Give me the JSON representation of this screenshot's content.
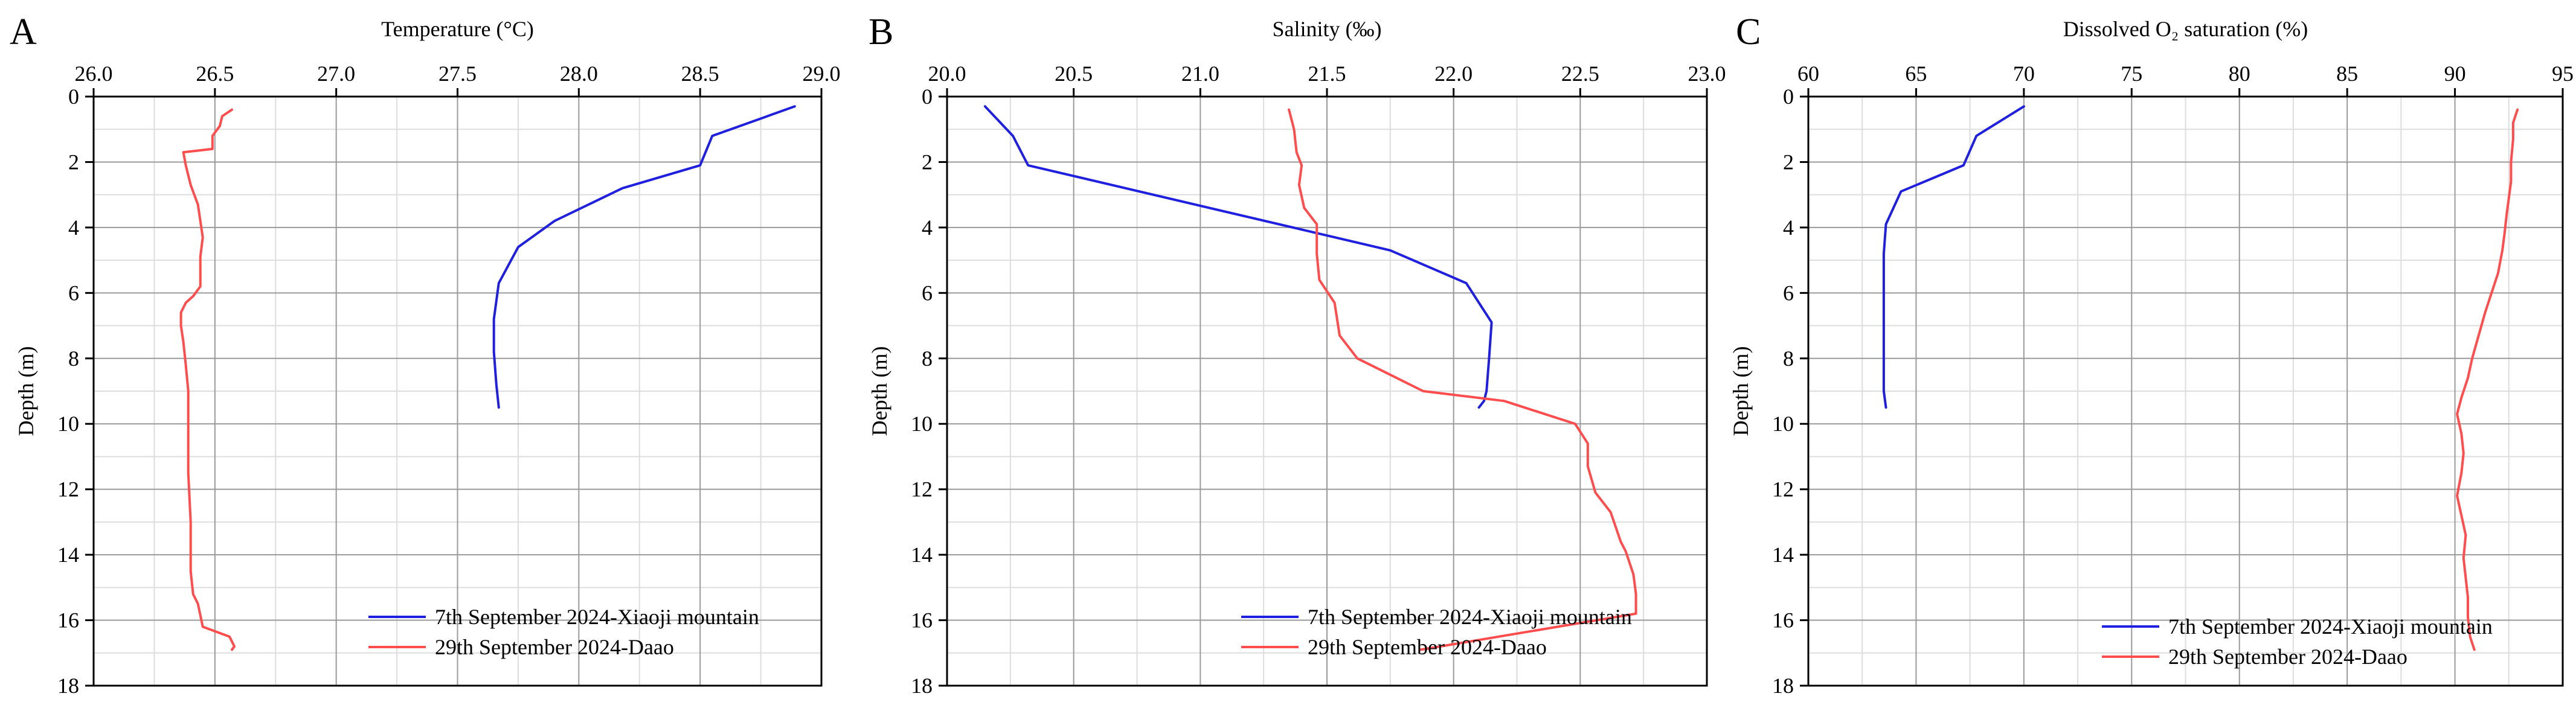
{
  "figure": {
    "panels": [
      "A",
      "B",
      "C"
    ]
  },
  "colors": {
    "series_blue": "#1f1fe0",
    "series_red": "#ff4d4d",
    "grid_major": "#9a9a9a",
    "grid_minor": "#dddddd",
    "axis": "#000000"
  },
  "chart_data": [
    {
      "panel": "A",
      "type": "line",
      "title": "",
      "xlabel": "Temperature (°C)",
      "ylabel": "Depth (m)",
      "xlim": [
        26.0,
        29.0
      ],
      "ylim": [
        0,
        18
      ],
      "x_axis_position": "top",
      "y_inverted": true,
      "xticks": [
        26.0,
        26.5,
        27.0,
        27.5,
        28.0,
        28.5,
        29.0
      ],
      "xtick_labels": [
        "26.0",
        "26.5",
        "27.0",
        "27.5",
        "28.0",
        "28.5",
        "29.0"
      ],
      "yticks": [
        0,
        2,
        4,
        6,
        8,
        10,
        12,
        14,
        16,
        18
      ],
      "ytick_labels": [
        "0",
        "2",
        "4",
        "6",
        "8",
        "10",
        "12",
        "14",
        "16",
        "18"
      ],
      "grid": true,
      "legend_position": "bottom-right",
      "series": [
        {
          "name": "7th September 2024-Xiaoji mountain",
          "color_key": "series_blue",
          "x": [
            28.89,
            28.55,
            28.5,
            28.18,
            27.9,
            27.75,
            27.67,
            27.65,
            27.65,
            27.66,
            27.67
          ],
          "y": [
            0.3,
            1.2,
            2.1,
            2.8,
            3.8,
            4.6,
            5.7,
            6.8,
            7.8,
            8.8,
            9.5
          ]
        },
        {
          "name": "29th September 2024-Daao",
          "color_key": "series_red",
          "x": [
            26.57,
            26.53,
            26.52,
            26.49,
            26.49,
            26.37,
            26.38,
            26.4,
            26.43,
            26.44,
            26.45,
            26.44,
            26.44,
            26.41,
            26.38,
            26.36,
            26.36,
            26.37,
            26.38,
            26.39,
            26.39,
            26.39,
            26.4,
            26.4,
            26.41,
            26.43,
            26.45,
            26.56,
            26.58,
            26.57
          ],
          "y": [
            0.4,
            0.6,
            0.9,
            1.2,
            1.6,
            1.7,
            2.1,
            2.7,
            3.3,
            3.8,
            4.3,
            4.9,
            5.8,
            6.1,
            6.3,
            6.6,
            7.0,
            7.5,
            8.2,
            9.0,
            10.0,
            11.5,
            13.0,
            14.5,
            15.2,
            15.5,
            16.2,
            16.5,
            16.8,
            16.9
          ]
        }
      ]
    },
    {
      "panel": "B",
      "type": "line",
      "title": "",
      "xlabel": "Salinity (‰)",
      "ylabel": "Depth (m)",
      "xlim": [
        20.0,
        23.0
      ],
      "ylim": [
        0,
        18
      ],
      "x_axis_position": "top",
      "y_inverted": true,
      "xticks": [
        20.0,
        20.5,
        21.0,
        21.5,
        22.0,
        22.5,
        23.0
      ],
      "xtick_labels": [
        "20.0",
        "20.5",
        "21.0",
        "21.5",
        "22.0",
        "22.5",
        "23.0"
      ],
      "yticks": [
        0,
        2,
        4,
        6,
        8,
        10,
        12,
        14,
        16,
        18
      ],
      "ytick_labels": [
        "0",
        "2",
        "4",
        "6",
        "8",
        "10",
        "12",
        "14",
        "16",
        "18"
      ],
      "grid": true,
      "legend_position": "bottom-right",
      "series": [
        {
          "name": "7th September 2024-Xiaoji mountain",
          "color_key": "series_blue",
          "x": [
            20.15,
            20.26,
            20.32,
            21.75,
            22.05,
            22.15,
            22.14,
            22.13,
            22.12,
            22.1
          ],
          "y": [
            0.3,
            1.2,
            2.1,
            4.7,
            5.7,
            6.9,
            8.0,
            9.0,
            9.3,
            9.5
          ],
          "y_note": "blue salinity profile"
        },
        {
          "name": "29th September 2024-Daao",
          "color_key": "series_red",
          "x": [
            21.35,
            21.37,
            21.38,
            21.4,
            21.39,
            21.41,
            21.46,
            21.46,
            21.47,
            21.53,
            21.55,
            21.62,
            21.88,
            22.2,
            22.48,
            22.53,
            22.53,
            22.56,
            22.62,
            22.66,
            22.68,
            22.71,
            22.72,
            22.72,
            21.87
          ],
          "y": [
            0.4,
            1.0,
            1.7,
            2.1,
            2.7,
            3.4,
            3.9,
            4.8,
            5.6,
            6.3,
            7.3,
            8.0,
            9.0,
            9.3,
            10.0,
            10.6,
            11.3,
            12.1,
            12.7,
            13.6,
            13.9,
            14.6,
            15.2,
            15.8,
            16.9
          ]
        }
      ]
    },
    {
      "panel": "C",
      "type": "line",
      "title": "",
      "xlabel": "Dissolved O₂ saturation (%)",
      "ylabel": "Depth (m)",
      "xlim": [
        60,
        95
      ],
      "ylim": [
        0,
        18
      ],
      "x_axis_position": "top",
      "y_inverted": true,
      "xticks": [
        60,
        65,
        70,
        75,
        80,
        85,
        90,
        95
      ],
      "xtick_labels": [
        "60",
        "65",
        "70",
        "75",
        "80",
        "85",
        "90",
        "95"
      ],
      "yticks": [
        0,
        2,
        4,
        6,
        8,
        10,
        12,
        14,
        16,
        18
      ],
      "ytick_labels": [
        "0",
        "2",
        "4",
        "6",
        "8",
        "10",
        "12",
        "14",
        "16",
        "18"
      ],
      "grid": true,
      "legend_position": "bottom-right",
      "series": [
        {
          "name": "7th September 2024-Xiaoji mountain",
          "color_key": "series_blue",
          "x": [
            70.0,
            67.8,
            67.2,
            64.3,
            63.6,
            63.5,
            63.5,
            63.5,
            63.5,
            63.5,
            63.6
          ],
          "y": [
            0.3,
            1.2,
            2.1,
            2.9,
            3.9,
            4.8,
            5.8,
            6.8,
            7.8,
            9.0,
            9.5
          ]
        },
        {
          "name": "29th September 2024-Daao",
          "color_key": "series_red",
          "x": [
            92.9,
            92.7,
            92.7,
            92.6,
            92.6,
            92.5,
            92.4,
            92.3,
            92.2,
            92.0,
            91.7,
            91.4,
            91.1,
            90.8,
            90.6,
            90.3,
            90.1,
            90.3,
            90.4,
            90.3,
            90.1,
            90.3,
            90.5,
            90.4,
            90.5,
            90.6,
            90.6,
            90.7,
            90.9
          ],
          "y": [
            0.4,
            0.8,
            1.3,
            2.0,
            2.6,
            3.1,
            3.6,
            4.2,
            4.7,
            5.4,
            6.0,
            6.6,
            7.3,
            8.0,
            8.6,
            9.2,
            9.7,
            10.3,
            10.9,
            11.5,
            12.2,
            12.8,
            13.4,
            14.1,
            14.7,
            15.3,
            15.9,
            16.5,
            16.9
          ]
        }
      ]
    }
  ]
}
